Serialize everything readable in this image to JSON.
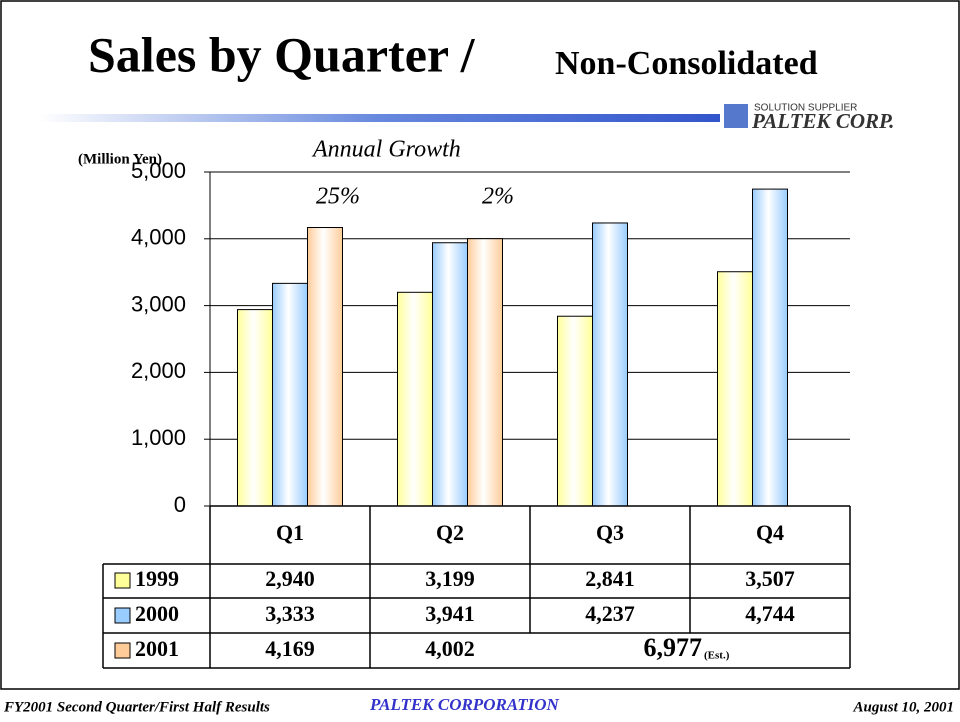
{
  "header": {
    "title": "Sales by Quarter /",
    "subtitle": "Non-Consolidated",
    "logo_tagline": "SOLUTION SUPPLIER",
    "logo_name": "PALTEK CORP."
  },
  "chart_data": {
    "type": "bar",
    "y_label": "(Million Yen)",
    "annotation": "Annual Growth",
    "categories": [
      "Q1",
      "Q2",
      "Q3",
      "Q4"
    ],
    "series": [
      {
        "name": "1999",
        "color": "#ffff99",
        "values": [
          2940,
          3199,
          2841,
          3507
        ],
        "value_labels": [
          "2,940",
          "3,199",
          "2,841",
          "3,507"
        ]
      },
      {
        "name": "2000",
        "color": "#99ccff",
        "values": [
          3333,
          3941,
          4237,
          4744
        ],
        "value_labels": [
          "3,333",
          "3,941",
          "4,237",
          "4,744"
        ]
      },
      {
        "name": "2001",
        "color": "#ffcc99",
        "values": [
          4169,
          4002,
          null,
          null
        ],
        "value_labels": [
          "4,169",
          "4,002",
          null,
          null
        ]
      }
    ],
    "growth": [
      25,
      2,
      null,
      null
    ],
    "growth_labels": [
      "25%",
      "2%",
      null,
      null
    ],
    "estimate_label": "6,977",
    "estimate_suffix": "(Est.)",
    "ylim": [
      0,
      5000
    ],
    "yticks": [
      0,
      {
        "value": 1000,
        "label": "1,000"
      },
      {
        "value": 2000,
        "label": "2,000"
      },
      {
        "value": 3000,
        "label": "3,000"
      },
      {
        "value": 4000,
        "label": "4,000"
      },
      {
        "value": 5000,
        "label": "5,000"
      }
    ],
    "grid": true
  },
  "footer": {
    "left": "FY2001 Second Quarter/First Half Results",
    "center": "PALTEK CORPORATION",
    "right": "August 10, 2001"
  }
}
